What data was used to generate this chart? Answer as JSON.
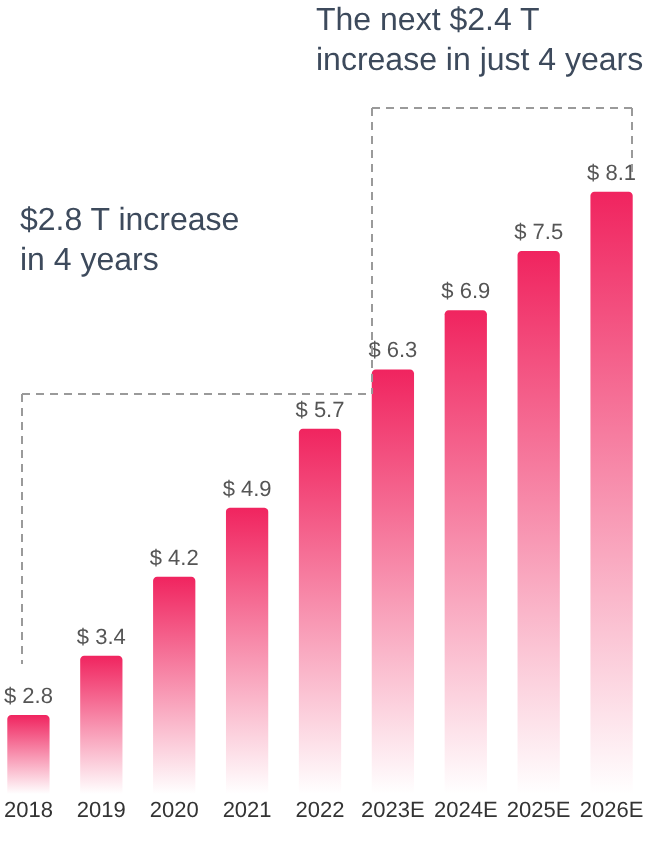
{
  "chart_data": {
    "type": "bar",
    "categories": [
      "2018",
      "2019",
      "2020",
      "2021",
      "2022",
      "2023E",
      "2024E",
      "2025E",
      "2026E"
    ],
    "values": [
      2.8,
      3.4,
      4.2,
      4.9,
      5.7,
      6.3,
      6.9,
      7.5,
      8.1
    ],
    "value_labels": [
      "$ 2.8",
      "$ 3.4",
      "$ 4.2",
      "$ 4.9",
      "$ 5.7",
      "$ 6.3",
      "$ 6.9",
      "$ 7.5",
      "$ 8.1"
    ],
    "color": "#f0245f",
    "ylim": [
      2,
      10
    ],
    "tick_labels": "x",
    "grid": false,
    "annotations": [
      "$2.8 T increase\nin 4 years",
      "The next $2.4 T\nincrease in just 4 years"
    ]
  }
}
